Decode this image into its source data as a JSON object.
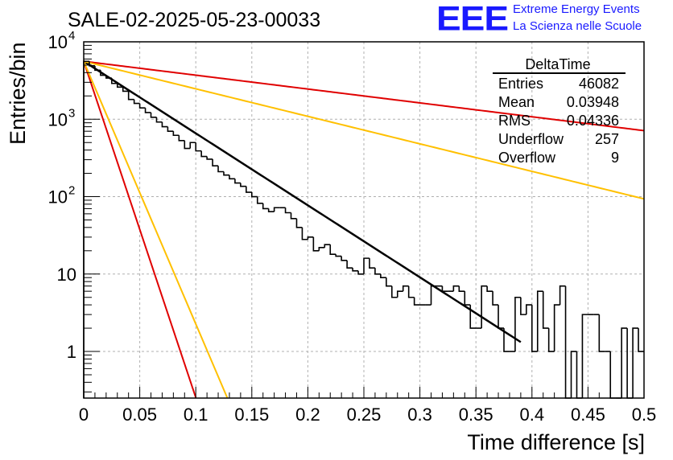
{
  "chart_data": {
    "type": "histogram",
    "title": "SALE-02-2025-05-23-00033",
    "xlabel": "Time difference [s]",
    "ylabel": "Entries/bin",
    "xlim": [
      0,
      0.5
    ],
    "ylim": [
      0.25,
      10000
    ],
    "yscale": "log",
    "grid": true,
    "x_ticks": [
      {
        "value": 0,
        "label": "0"
      },
      {
        "value": 0.05,
        "label": "0.05"
      },
      {
        "value": 0.1,
        "label": "0.1"
      },
      {
        "value": 0.15,
        "label": "0.15"
      },
      {
        "value": 0.2,
        "label": "0.2"
      },
      {
        "value": 0.25,
        "label": "0.25"
      },
      {
        "value": 0.3,
        "label": "0.3"
      },
      {
        "value": 0.35,
        "label": "0.35"
      },
      {
        "value": 0.4,
        "label": "0.4"
      },
      {
        "value": 0.45,
        "label": "0.45"
      },
      {
        "value": 0.5,
        "label": "0.5"
      }
    ],
    "y_ticks": [
      {
        "value": 1,
        "label": "1"
      },
      {
        "value": 10,
        "label": "10"
      },
      {
        "value": 100,
        "label": "10",
        "exponent": "2"
      },
      {
        "value": 1000,
        "label": "10",
        "exponent": "3"
      },
      {
        "value": 10000,
        "label": "10",
        "exponent": "4"
      }
    ],
    "histogram": {
      "name": "DeltaTime",
      "bin_width": 0.005,
      "bin_start": 0,
      "counts": [
        5600,
        4900,
        4300,
        3700,
        3400,
        2900,
        2600,
        2300,
        1800,
        1600,
        1400,
        1220,
        1060,
        920,
        800,
        700,
        620,
        530,
        420,
        500,
        390,
        330,
        305,
        250,
        210,
        190,
        170,
        150,
        136,
        114,
        100,
        82,
        70,
        64,
        72,
        72,
        62,
        52,
        40,
        28,
        30,
        20,
        22,
        24,
        18,
        17,
        15,
        12,
        11,
        10,
        16,
        12,
        10,
        9,
        7,
        5,
        6,
        7,
        5,
        4,
        4,
        4,
        7,
        7,
        6,
        6,
        7,
        6,
        4,
        2,
        2,
        7,
        6,
        4,
        2,
        1,
        1,
        5,
        3,
        4,
        1,
        6,
        2,
        1,
        4,
        7,
        0,
        1,
        0,
        3,
        3,
        3,
        1,
        1,
        0,
        0,
        2,
        0,
        2,
        1
      ]
    },
    "fits": [
      {
        "name": "exp-fit",
        "color": "#000000",
        "a": 5600,
        "tau": 0.0467,
        "x_end": 0.39
      },
      {
        "name": "red-steep",
        "color": "#e00000",
        "a": 5600,
        "tau": 0.01,
        "x_end": 0.1
      },
      {
        "name": "orange-steep",
        "color": "#ffc000",
        "a": 5600,
        "tau": 0.0128,
        "x_end": 0.13
      },
      {
        "name": "red-flat",
        "color": "#e00000",
        "a": 5600,
        "tau": 0.2425,
        "x_end": 0.5
      },
      {
        "name": "orange-flat",
        "color": "#ffc000",
        "a": 5600,
        "tau": 0.1222,
        "x_end": 0.5
      }
    ]
  },
  "stats": {
    "title": "DeltaTime",
    "rows": [
      {
        "label": "Entries",
        "value": "46082"
      },
      {
        "label": "Mean",
        "value": "0.03948"
      },
      {
        "label": "RMS",
        "value": "0.04336"
      },
      {
        "label": "Underflow",
        "value": "257"
      },
      {
        "label": "Overflow",
        "value": "9"
      }
    ]
  },
  "logo": {
    "mark": "EEE",
    "line1": "Extreme Energy Events",
    "line2": "La Scienza nelle Scuole",
    "color": "#1a1aff"
  }
}
